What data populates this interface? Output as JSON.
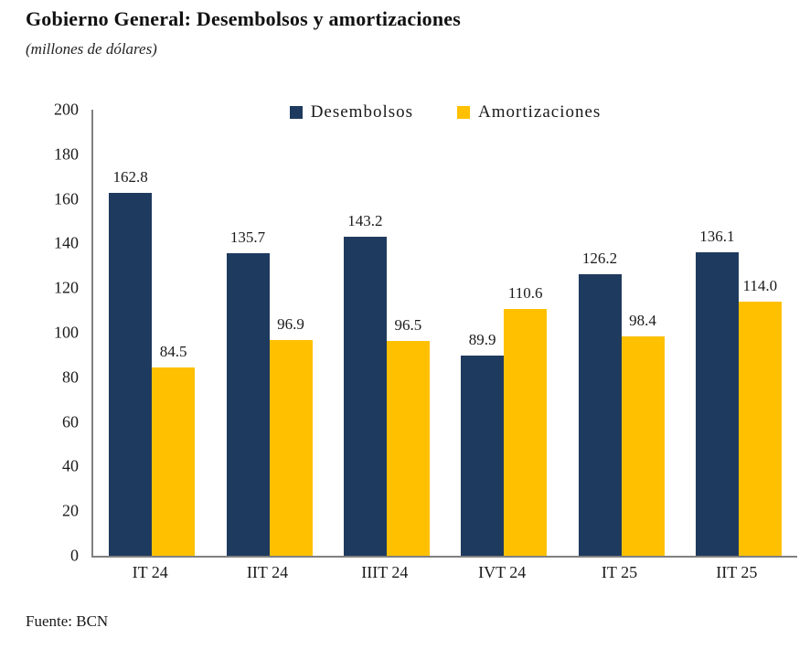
{
  "title": "Gobierno General: Desembolsos y amortizaciones",
  "subtitle": "(millones de dólares)",
  "source": "Fuente: BCN",
  "colors": {
    "desembolsos": "#1F3A5F",
    "amortizaciones": "#FFC000",
    "axis": "#808080",
    "text": "#1A1A1A"
  },
  "chart_data": {
    "type": "bar",
    "title": "Gobierno General: Desembolsos y amortizaciones",
    "subtitle": "(millones de dólares)",
    "categories": [
      "IT 24",
      "IIT 24",
      "IIIT 24",
      "IVT 24",
      "IT 25",
      "IIT 25"
    ],
    "series": [
      {
        "name": "Desembolsos",
        "color": "#1F3A5F",
        "values": [
          162.8,
          135.7,
          143.2,
          89.9,
          126.2,
          136.1
        ]
      },
      {
        "name": "Amortizaciones",
        "color": "#FFC000",
        "values": [
          84.5,
          96.9,
          96.5,
          110.6,
          98.4,
          114.0
        ]
      }
    ],
    "ylabel": "",
    "xlabel": "",
    "ylim": [
      0,
      200
    ],
    "ytick_step": 20,
    "grid": false,
    "legend_position": "top-center",
    "value_labels": true,
    "value_label_decimals": 1
  }
}
